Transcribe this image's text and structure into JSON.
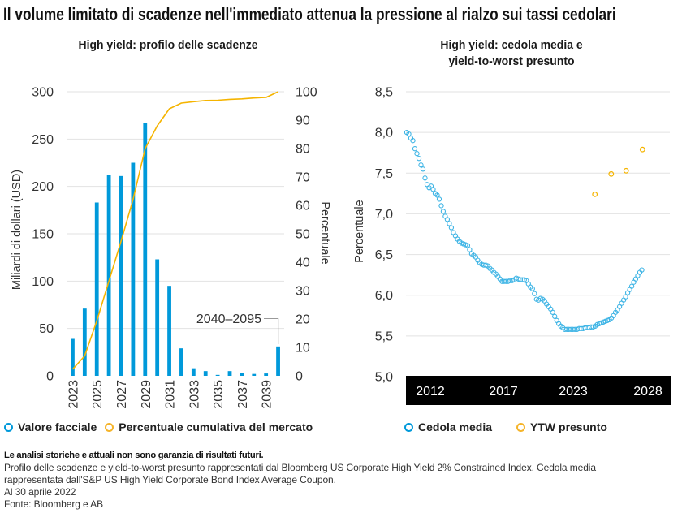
{
  "page": {
    "title": "Il volume limitato di scadenze nell'immediato attenua la pressione al rialzo sui tassi cedolari"
  },
  "legends": {
    "left": [
      {
        "label": "Valore facciale",
        "icon": "circle-marker-icon",
        "color": "#0099DA"
      },
      {
        "label": "Percentuale cumulativa del mercato",
        "icon": "circle-marker-icon",
        "color": "#F5B400"
      }
    ],
    "right": [
      {
        "label": "Cedola media",
        "icon": "circle-marker-icon",
        "color": "#0099DA"
      },
      {
        "label": "YTW presunto",
        "icon": "circle-marker-icon",
        "color": "#F5B400"
      }
    ]
  },
  "footer": {
    "disclaimer": "Le analisi storiche e attuali non sono garanzia di risultati futuri.",
    "lines": [
      "Profilo delle scadenze e yield-to-worst presunto rappresentati dal Bloomberg US Corporate High Yield 2% Constrained Index. Cedola media",
      "rappresentata dall'S&P US High Yield Corporate Bond Index Average Coupon.",
      "Al 30 aprile 2022",
      "Fonte: Bloomberg e AB"
    ]
  },
  "chart_data": [
    {
      "type": "bar",
      "title": "High yield: profilo delle scadenze",
      "categories": [
        "2023",
        "2024",
        "2025",
        "2026",
        "2027",
        "2028",
        "2029",
        "2030",
        "2031",
        "2032",
        "2033",
        "2034",
        "2035",
        "2036",
        "2037",
        "2038",
        "2039",
        "2040–2095"
      ],
      "x_tick_labels": [
        "2023",
        "2025",
        "2027",
        "2029",
        "2031",
        "2033",
        "2035",
        "2037",
        "2039"
      ],
      "series": [
        {
          "name": "Valore facciale",
          "type": "bar",
          "axis": "left",
          "color": "#0099DA",
          "values": [
            39,
            71,
            183,
            212,
            211,
            225,
            267,
            123,
            95,
            29,
            8,
            5,
            1,
            5,
            3,
            2,
            2.5,
            31
          ]
        },
        {
          "name": "Percentuale cumulativa del mercato",
          "type": "line",
          "axis": "right",
          "color": "#F5B400",
          "values": [
            2.3,
            7.0,
            19.3,
            33.3,
            47.3,
            62.1,
            80.0,
            88.0,
            94.0,
            96.0,
            96.5,
            96.9,
            97.0,
            97.3,
            97.5,
            97.8,
            98.0,
            100
          ]
        }
      ],
      "ylabel": "Miliardi di dollari (USD)",
      "ylim": [
        0,
        300
      ],
      "yticks": [
        0,
        50,
        100,
        150,
        200,
        250,
        300
      ],
      "y2label": "Percentuale",
      "y2lim": [
        0,
        100
      ],
      "y2ticks": [
        0,
        10,
        20,
        30,
        40,
        50,
        60,
        70,
        80,
        90,
        100
      ],
      "annotation": {
        "text": "2040–2095",
        "category": "2040–2095"
      },
      "grid": true,
      "legend": "bottom-left"
    },
    {
      "type": "scatter",
      "title": "High yield: cedola media e yield-to-worst presunto",
      "title_lines": [
        "High yield: cedola media e",
        "yield-to-worst presunto"
      ],
      "ylabel": "Percentuale",
      "ylim": [
        5.0,
        8.5
      ],
      "yticks": [
        5.0,
        5.5,
        6.0,
        6.5,
        7.0,
        7.5,
        8.0,
        8.5
      ],
      "ytick_labels": [
        "5,0",
        "5,5",
        "6,0",
        "6,5",
        "7,0",
        "7,5",
        "8,0",
        "8,5"
      ],
      "xlim": [
        2010.2,
        2029.7
      ],
      "xtick_labels": [
        "2012",
        "2017",
        "2023",
        "2028"
      ],
      "series": [
        {
          "name": "Cedola media",
          "type": "scatter",
          "color": "#3DB4E5",
          "x_start": 2010.27,
          "x_step": 0.149,
          "values": [
            8.0,
            7.98,
            7.93,
            7.9,
            7.8,
            7.74,
            7.68,
            7.6,
            7.55,
            7.44,
            7.36,
            7.32,
            7.34,
            7.3,
            7.25,
            7.23,
            7.18,
            7.1,
            7.03,
            6.97,
            6.93,
            6.88,
            6.83,
            6.77,
            6.73,
            6.69,
            6.66,
            6.64,
            6.63,
            6.62,
            6.61,
            6.56,
            6.51,
            6.49,
            6.47,
            6.43,
            6.4,
            6.38,
            6.37,
            6.37,
            6.36,
            6.33,
            6.31,
            6.28,
            6.26,
            6.23,
            6.2,
            6.17,
            6.17,
            6.17,
            6.17,
            6.18,
            6.18,
            6.19,
            6.21,
            6.2,
            6.19,
            6.19,
            6.19,
            6.18,
            6.14,
            6.1,
            6.08,
            6.02,
            5.95,
            5.94,
            5.96,
            5.95,
            5.93,
            5.89,
            5.86,
            5.83,
            5.79,
            5.74,
            5.69,
            5.65,
            5.62,
            5.6,
            5.58,
            5.58,
            5.58,
            5.58,
            5.58,
            5.58,
            5.58,
            5.59,
            5.59,
            5.59,
            5.6,
            5.6,
            5.6,
            5.61,
            5.61,
            5.62,
            5.64,
            5.65,
            5.66,
            5.67,
            5.68,
            5.69,
            5.7,
            5.72,
            5.75,
            5.79,
            5.82,
            5.86,
            5.9,
            5.94,
            5.98,
            6.03,
            6.07,
            6.11,
            6.16,
            6.2,
            6.24,
            6.28,
            6.31
          ]
        },
        {
          "name": "YTW presunto",
          "type": "scatter",
          "color": "#F5B400",
          "points": [
            [
              2024.1,
              7.24
            ],
            [
              2025.3,
              7.49
            ],
            [
              2026.4,
              7.53
            ],
            [
              2027.6,
              7.79
            ]
          ]
        }
      ],
      "grid": true,
      "legend": "bottom-right"
    }
  ]
}
